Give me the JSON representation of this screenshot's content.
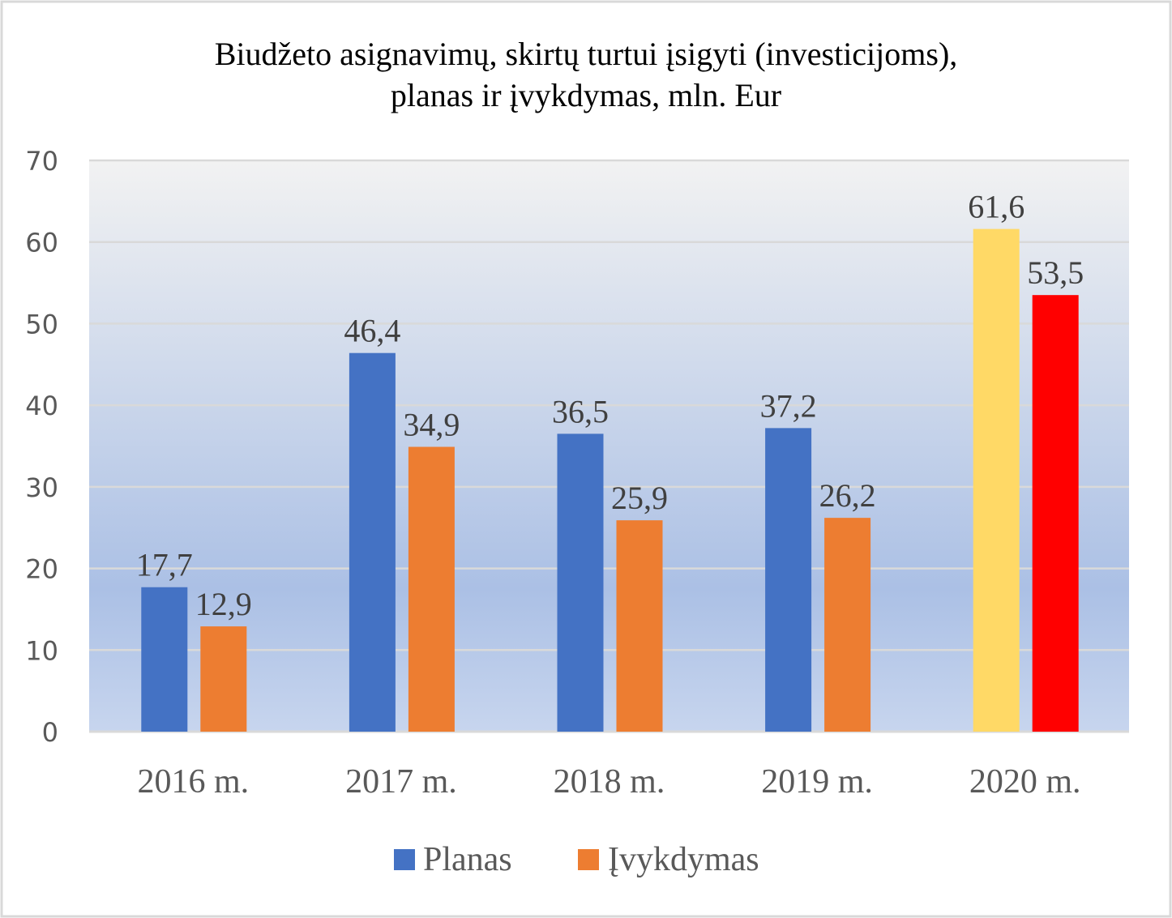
{
  "chart_data": {
    "type": "bar",
    "title": [
      "Biudžeto asignavimų, skirtų turtui įsigyti (investicijoms),",
      "planas ir įvykdymas, mln. Eur"
    ],
    "categories": [
      "2016 m.",
      "2017 m.",
      "2018 m.",
      "2019 m.",
      "2020 m."
    ],
    "series": [
      {
        "name": "Planas",
        "values": [
          17.7,
          46.4,
          36.5,
          37.2,
          61.6
        ],
        "labels": [
          "17,7",
          "46,4",
          "36,5",
          "37,2",
          "61,6"
        ],
        "color": "#4472c4",
        "point_colors": [
          null,
          null,
          null,
          null,
          "#ffd966"
        ]
      },
      {
        "name": "Įvykdymas",
        "values": [
          12.9,
          34.9,
          25.9,
          26.2,
          53.5
        ],
        "labels": [
          "12,9",
          "34,9",
          "25,9",
          "26,2",
          "53,5"
        ],
        "color": "#ed7d31",
        "point_colors": [
          null,
          null,
          null,
          null,
          "#ff0000"
        ]
      }
    ],
    "xlabel": "",
    "ylabel": "",
    "ylim": [
      0,
      70
    ],
    "yticks": [
      0,
      10,
      20,
      30,
      40,
      50,
      60,
      70
    ],
    "grid": true,
    "legend": "bottom"
  }
}
